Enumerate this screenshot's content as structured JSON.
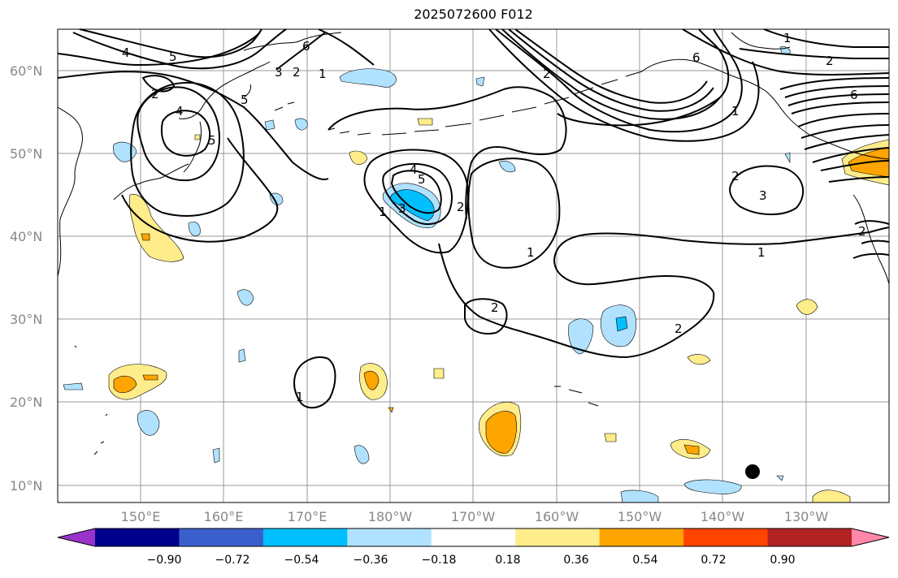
{
  "title": "2025072600 F012",
  "map": {
    "lat_labels": [
      "60°N",
      "50°N",
      "40°N",
      "30°N",
      "20°N",
      "10°N"
    ],
    "lon_labels": [
      "150°E",
      "160°E",
      "170°E",
      "180°W",
      "170°W",
      "160°W",
      "150°W",
      "140°W",
      "130°W"
    ],
    "contour_labels": [
      "1",
      "2",
      "3",
      "4",
      "5",
      "6"
    ]
  },
  "colorbar": {
    "ticks": [
      "−0.90",
      "−0.72",
      "−0.54",
      "−0.36",
      "−0.18",
      "0.18",
      "0.36",
      "0.54",
      "0.72",
      "0.90"
    ],
    "colors": [
      "#9933cc",
      "#00008b",
      "#3a5fcd",
      "#00bfff",
      "#b0e2ff",
      "#ffffff",
      "#ffec8b",
      "#ffa500",
      "#ff4500",
      "#b22222",
      "#ff88aa"
    ]
  },
  "colors": {
    "land_outline": "#000000",
    "contour": "#000000",
    "grid": "#999999"
  }
}
